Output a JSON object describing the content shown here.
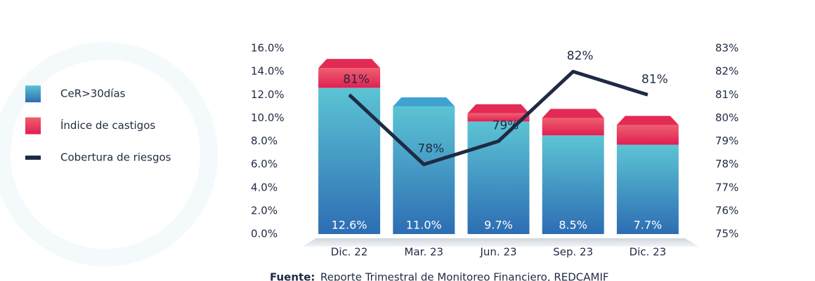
{
  "chart_data": {
    "type": "bar",
    "categories": [
      "Dic. 22",
      "Mar. 23",
      "Jun. 23",
      "Sep. 23",
      "Dic. 23"
    ],
    "series": [
      {
        "name": "CeR>30días",
        "color": "#3a86c4",
        "values": [
          12.6,
          11.0,
          9.7,
          8.5,
          7.7
        ],
        "value_labels": [
          "12.6%",
          "11.0%",
          "9.7%",
          "8.5%",
          "7.7%"
        ]
      },
      {
        "name": "Índice de castigos",
        "color": "#e8335a",
        "values": [
          1.7,
          0,
          0.7,
          1.5,
          1.7
        ]
      },
      {
        "name": "Cobertura de riesgos",
        "color": "#1f2a44",
        "type": "line",
        "axis": "y2",
        "values": [
          81,
          78,
          79,
          82,
          81
        ],
        "value_labels": [
          "81%",
          "78%",
          "79%",
          "82%",
          "81%"
        ]
      }
    ],
    "ylim": [
      0,
      16
    ],
    "yticks": [
      {
        "value": 0,
        "label": "0.0%"
      },
      {
        "value": 2,
        "label": "2.0%"
      },
      {
        "value": 4,
        "label": "4.0%"
      },
      {
        "value": 6,
        "label": "6.0%"
      },
      {
        "value": 8,
        "label": "8.0%"
      },
      {
        "value": 10,
        "label": "10.0%"
      },
      {
        "value": 12,
        "label": "12.0%"
      },
      {
        "value": 14,
        "label": "14.0%"
      },
      {
        "value": 16,
        "label": "16.0%"
      }
    ],
    "y2lim": [
      75,
      83
    ],
    "y2ticks": [
      {
        "value": 75,
        "label": "75%"
      },
      {
        "value": 76,
        "label": "76%"
      },
      {
        "value": 77,
        "label": "77%"
      },
      {
        "value": 78,
        "label": "78%"
      },
      {
        "value": 79,
        "label": "79%"
      },
      {
        "value": 80,
        "label": "80%"
      },
      {
        "value": 81,
        "label": "81%"
      },
      {
        "value": 82,
        "label": "82%"
      },
      {
        "value": 83,
        "label": "83%"
      }
    ],
    "grid": false,
    "legend": "left",
    "source_label": "Fuente:",
    "source": "Reporte Trimestral de Monitoreo Financiero, REDCAMIF"
  }
}
